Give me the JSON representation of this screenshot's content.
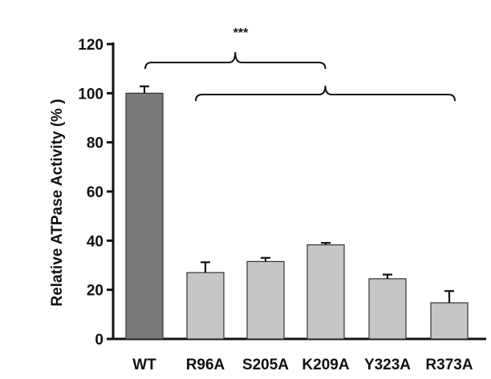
{
  "chart_data": {
    "type": "bar",
    "title": "",
    "xlabel": "",
    "ylabel": "Relative ATPase Activity (% )",
    "ylim": [
      0,
      120
    ],
    "yticks": [
      0,
      20,
      40,
      60,
      80,
      100,
      120
    ],
    "yticklabels": [
      "0",
      "20",
      "40",
      "60",
      "80",
      "100",
      "120"
    ],
    "categories": [
      "WT",
      "R96A",
      "S205A",
      "K209A",
      "Y323A",
      "R373A"
    ],
    "values": [
      100,
      27,
      31.5,
      38.3,
      24.5,
      14.7
    ],
    "errors": [
      2.8,
      4.2,
      1.5,
      0.8,
      1.7,
      4.8
    ],
    "bar_colors": [
      "#7a7a7a",
      "#c6c6c6",
      "#c6c6c6",
      "#c6c6c6",
      "#c6c6c6",
      "#c6c6c6"
    ],
    "significance": {
      "label": "***",
      "group_from": "WT",
      "mutants_from": "R96A",
      "mutants_to": "R373A"
    }
  }
}
